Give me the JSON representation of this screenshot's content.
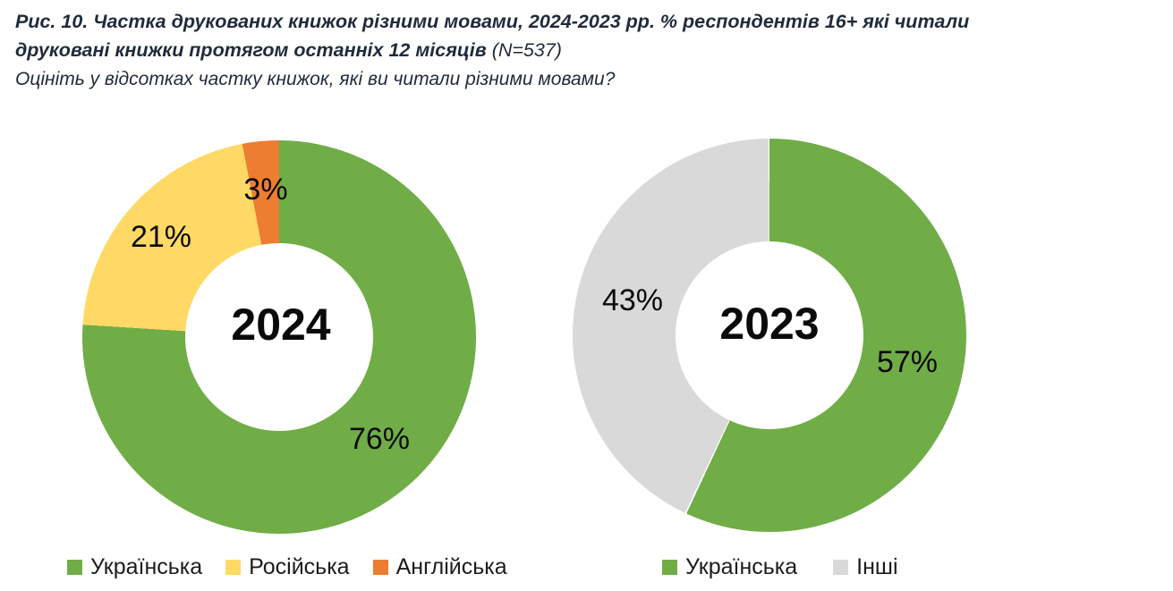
{
  "header": {
    "title_line1": "Рис. 10. Частка друкованих книжок різними мовами, 2024-2023 рр. % респондентів 16+ які читали",
    "title_line2": "друковані книжки протягом останніх 12 місяців",
    "title_note": "(N=537)",
    "subtitle": "Оцініть у відсотках частку книжок, які ви читали різними мовами?"
  },
  "colors": {
    "green": "#70AD47",
    "yellow": "#FFD966",
    "orange": "#ED7D31",
    "gray": "#D9D9D9",
    "title_text": "#1F2B3B",
    "label_text": "#0A0A0A"
  },
  "chart_data": [
    {
      "type": "pie",
      "subtype": "donut",
      "center_label": "2024",
      "categories": [
        "Українська",
        "Російська",
        "Англійська"
      ],
      "values": [
        76,
        21,
        3
      ],
      "value_labels": [
        "76%",
        "21%",
        "3%"
      ],
      "colors": [
        "#70AD47",
        "#FFD966",
        "#ED7D31"
      ],
      "start_angle_deg": 0,
      "direction": "clockwise",
      "slice_gap_deg": 0,
      "legend_position": "bottom"
    },
    {
      "type": "pie",
      "subtype": "donut",
      "center_label": "2023",
      "categories": [
        "Українська",
        "Інші"
      ],
      "values": [
        57,
        43
      ],
      "value_labels": [
        "57%",
        "43%"
      ],
      "colors": [
        "#70AD47",
        "#D9D9D9"
      ],
      "start_angle_deg": 0,
      "direction": "clockwise",
      "slice_gap_deg": 0.5,
      "legend_position": "bottom"
    }
  ]
}
